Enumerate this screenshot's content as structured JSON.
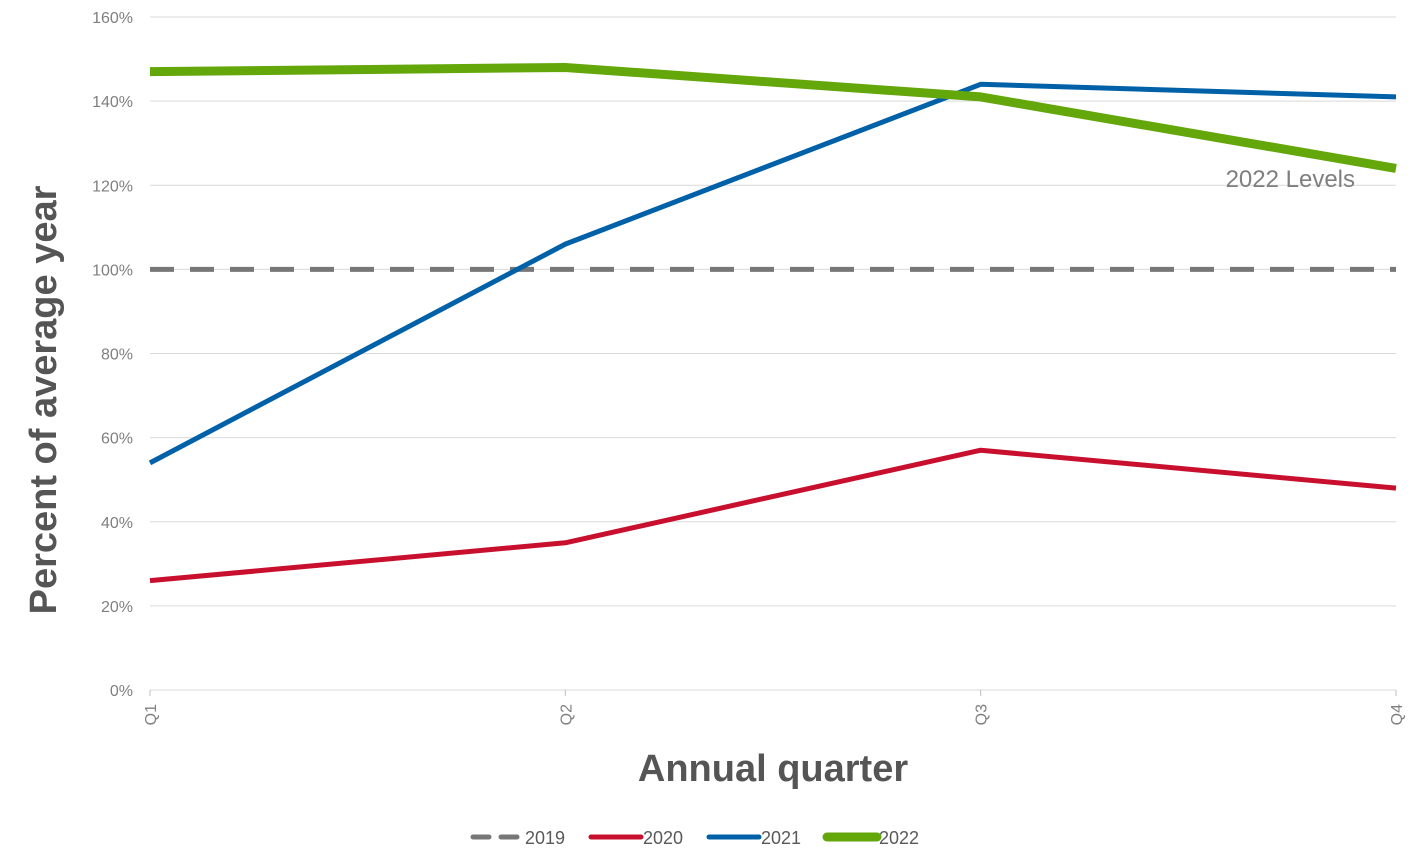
{
  "chart_data": {
    "type": "line",
    "categories": [
      "Q1",
      "Q2",
      "Q3",
      "Q4"
    ],
    "series": [
      {
        "name": "2019",
        "values": [
          100,
          100,
          100,
          100
        ],
        "color": "#777777",
        "style": "dashed"
      },
      {
        "name": "2020",
        "values": [
          26,
          35,
          57,
          48
        ],
        "color": "#c8102e",
        "style": "solid"
      },
      {
        "name": "2021",
        "values": [
          54,
          106,
          144,
          141
        ],
        "color": "#0061a8",
        "style": "solid"
      },
      {
        "name": "2022",
        "values": [
          147,
          148,
          141,
          124
        ],
        "color": "#64a70b",
        "style": "solid-thick"
      }
    ],
    "ylabel": "Percent of average year",
    "xlabel": "Annual quarter",
    "ylim": [
      0,
      160
    ],
    "yticks": [
      "0%",
      "20%",
      "40%",
      "60%",
      "80%",
      "100%",
      "120%",
      "140%",
      "160%"
    ],
    "grid": true,
    "legend_position": "bottom-center",
    "annotation": "2022 Levels"
  }
}
